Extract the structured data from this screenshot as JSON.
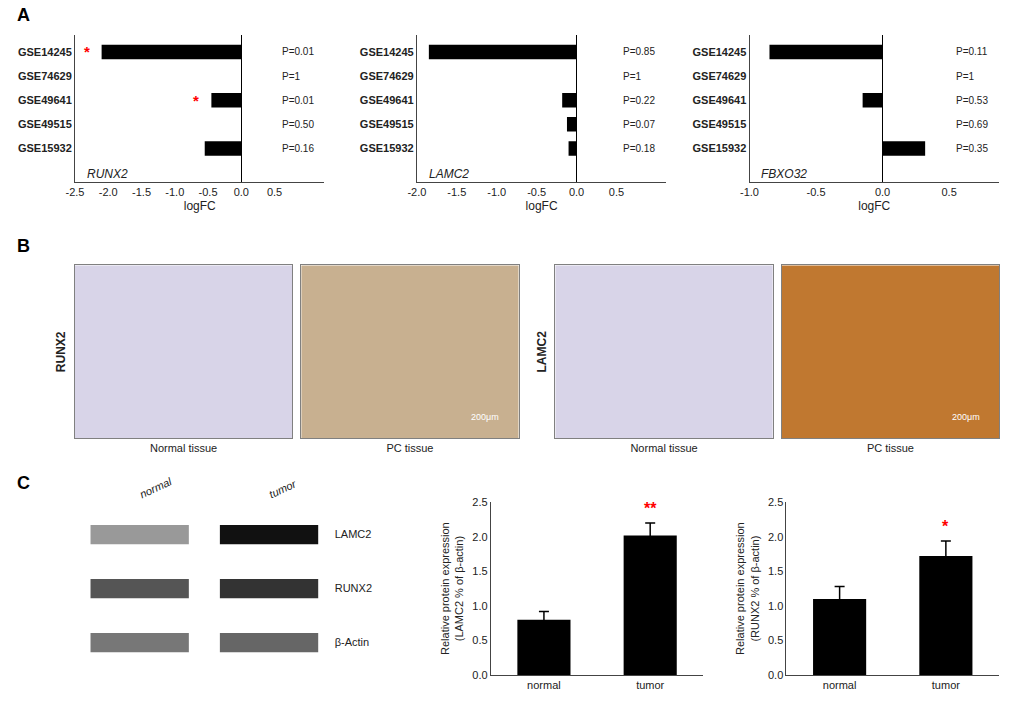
{
  "chart_data": [
    {
      "type": "bar",
      "orientation": "horizontal",
      "title": "A",
      "categories": [
        "GSE14245",
        "GSE74629",
        "GSE49641",
        "GSE49515",
        "GSE15932"
      ],
      "values": [
        -2.1,
        0.0,
        -0.45,
        0.0,
        -0.55
      ],
      "pvalues": [
        "P=0.01",
        "P=1",
        "P=0.01",
        "P=0.50",
        "P=0.16"
      ],
      "significant": [
        true,
        false,
        true,
        false,
        false
      ],
      "sig_label": "*",
      "sig_color": "#ff0000",
      "color": "#000000",
      "xlim": [
        -2.5,
        1.25
      ],
      "xticks": [
        -2.5,
        {
          "value": -2.0,
          "label": "-2.0"
        },
        -1.5,
        {
          "value": -1.0,
          "label": "-1.0"
        },
        -0.5,
        {
          "value": 0,
          "label": "0.0"
        },
        0.5
      ],
      "xlabel": "logFC",
      "annotations": [
        "RUNX2"
      ],
      "grid": false
    },
    {
      "type": "bar",
      "orientation": "horizontal",
      "categories": [
        "GSE14245",
        "GSE74629",
        "GSE49641",
        "GSE49515",
        "GSE15932"
      ],
      "values": [
        -1.85,
        0.0,
        -0.18,
        -0.12,
        -0.1
      ],
      "pvalues": [
        "P=0.85",
        "P=1",
        "P=0.22",
        "P=0.07",
        "P=0.18"
      ],
      "significant": [
        false,
        false,
        false,
        false,
        false
      ],
      "color": "#000000",
      "xlim": [
        -2.0,
        1.125
      ],
      "xticks": [
        {
          "value": -2.0,
          "label": "-2.0"
        },
        -1.5,
        {
          "value": -1.0,
          "label": "-1.0"
        },
        -0.5,
        {
          "value": 0,
          "label": "0.0"
        },
        0.5
      ],
      "xlabel": "logFC",
      "annotations": [
        "LAMC2"
      ],
      "grid": false
    },
    {
      "type": "bar",
      "orientation": "horizontal",
      "categories": [
        "GSE14245",
        "GSE74629",
        "GSE49641",
        "GSE49515",
        "GSE15932"
      ],
      "values": [
        -0.85,
        0.0,
        -0.15,
        0.0,
        0.32
      ],
      "pvalues": [
        "P=0.11",
        "P=1",
        "P=0.53",
        "P=0.69",
        "P=0.35"
      ],
      "significant": [
        false,
        false,
        false,
        false,
        false
      ],
      "color": "#000000",
      "xlim": [
        -1.0,
        0.875
      ],
      "xticks": [
        {
          "value": -1.0,
          "label": "-1.0"
        },
        -0.5,
        {
          "value": 0,
          "label": "0.0"
        },
        0.5
      ],
      "xlabel": "logFC",
      "annotations": [
        "FBXO32"
      ],
      "grid": false
    },
    {
      "type": "image",
      "title": "B",
      "color": "#d8d4e8",
      "xlabel": "Normal tissue",
      "ylabel": "RUNX2",
      "tick_labels": false
    },
    {
      "type": "image",
      "color": "#c8b090",
      "xlabel": "PC tissue",
      "annotations": [
        "200μm"
      ],
      "tick_labels": false
    },
    {
      "type": "image",
      "color": "#d8d4e8",
      "xlabel": "Normal tissue",
      "ylabel": "LAMC2",
      "tick_labels": false
    },
    {
      "type": "image",
      "color": "#c07830",
      "xlabel": "PC tissue",
      "annotations": [
        "200μm"
      ],
      "tick_labels": false
    },
    {
      "type": "blot",
      "title": "C",
      "categories": [
        "normal",
        "tumor"
      ],
      "series": [
        {
          "name": "LAMC2",
          "colors": [
            "#999999",
            "#111111"
          ]
        },
        {
          "name": "RUNX2",
          "colors": [
            "#555555",
            "#333333"
          ]
        },
        {
          "name": "β-Actin",
          "colors": [
            "#777777",
            "#666666"
          ]
        }
      ]
    },
    {
      "type": "bar",
      "categories": [
        "normal",
        "tumor"
      ],
      "values": [
        0.8,
        2.02
      ],
      "errors": [
        0.12,
        0.18
      ],
      "significant": [
        false,
        true
      ],
      "sig_label": "**",
      "sig_color": "#ff0000",
      "color": "#000000",
      "ylabel": "Relative protein expression\n(LAMC2 % of β-actin)",
      "ylim": [
        0,
        2.5
      ],
      "yticks": [
        {
          "value": 0,
          "label": "0.0"
        },
        0.5,
        {
          "value": 1,
          "label": "1.0"
        },
        1.5,
        {
          "value": 2,
          "label": "2.0"
        },
        2.5
      ],
      "grid": false
    },
    {
      "type": "bar",
      "categories": [
        "normal",
        "tumor"
      ],
      "values": [
        1.1,
        1.72
      ],
      "errors": [
        0.18,
        0.22
      ],
      "significant": [
        false,
        true
      ],
      "sig_label": "*",
      "sig_color": "#ff0000",
      "color": "#000000",
      "ylabel": "Relative protein expression\n(RUNX2 % of β-actin)",
      "ylim": [
        0,
        2.5
      ],
      "yticks": [
        {
          "value": 0,
          "label": "0.0"
        },
        0.5,
        {
          "value": 1,
          "label": "1.0"
        },
        1.5,
        {
          "value": 2,
          "label": "2.0"
        },
        2.5
      ],
      "grid": false
    }
  ]
}
